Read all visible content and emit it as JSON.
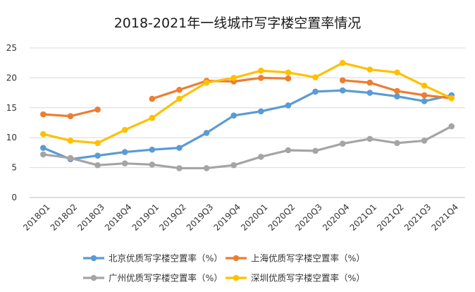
{
  "chart_data": {
    "type": "line",
    "title": "2018-2021年一线城市写字楼空置率情况",
    "xlabel": "",
    "ylabel": "",
    "ylim": [
      0,
      25
    ],
    "yticks": [
      0,
      5,
      10,
      15,
      20,
      25
    ],
    "grid": true,
    "legend_position": "bottom",
    "categories": [
      "2018Q1",
      "2018Q2",
      "2018Q3",
      "2018Q4",
      "2019Q1",
      "2019Q2",
      "2019Q3",
      "2019Q4",
      "2020Q1",
      "2020Q2",
      "2020Q3",
      "2020Q4",
      "2021Q1",
      "2021Q2",
      "2021Q3",
      "2021Q4"
    ],
    "series": [
      {
        "name": "北京优质写字楼空置率（%）",
        "color": "#5b9bd5",
        "values": [
          8.3,
          6.4,
          7.0,
          7.6,
          8.0,
          8.3,
          10.8,
          13.7,
          14.4,
          15.4,
          17.7,
          17.9,
          17.5,
          16.9,
          16.1,
          17.1
        ]
      },
      {
        "name": "上海优质写字楼空置率（%）",
        "color": "#ed7d31",
        "values": [
          13.9,
          13.6,
          14.7,
          null,
          16.5,
          18.0,
          19.5,
          19.4,
          20.0,
          19.9,
          null,
          19.6,
          19.2,
          17.8,
          17.1,
          16.6
        ]
      },
      {
        "name": "广州优质写字楼空置率（%）",
        "color": "#a5a5a5",
        "values": [
          7.2,
          6.6,
          5.4,
          5.7,
          5.5,
          4.9,
          4.9,
          5.4,
          6.8,
          7.9,
          7.8,
          9.0,
          9.8,
          9.1,
          9.5,
          11.9
        ]
      },
      {
        "name": "深圳优质写字楼空置率（%）",
        "color": "#ffc000",
        "values": [
          10.6,
          9.5,
          9.1,
          11.3,
          13.3,
          16.5,
          19.2,
          20.0,
          21.2,
          20.9,
          20.1,
          22.5,
          21.4,
          20.9,
          18.7,
          16.6
        ]
      }
    ]
  }
}
